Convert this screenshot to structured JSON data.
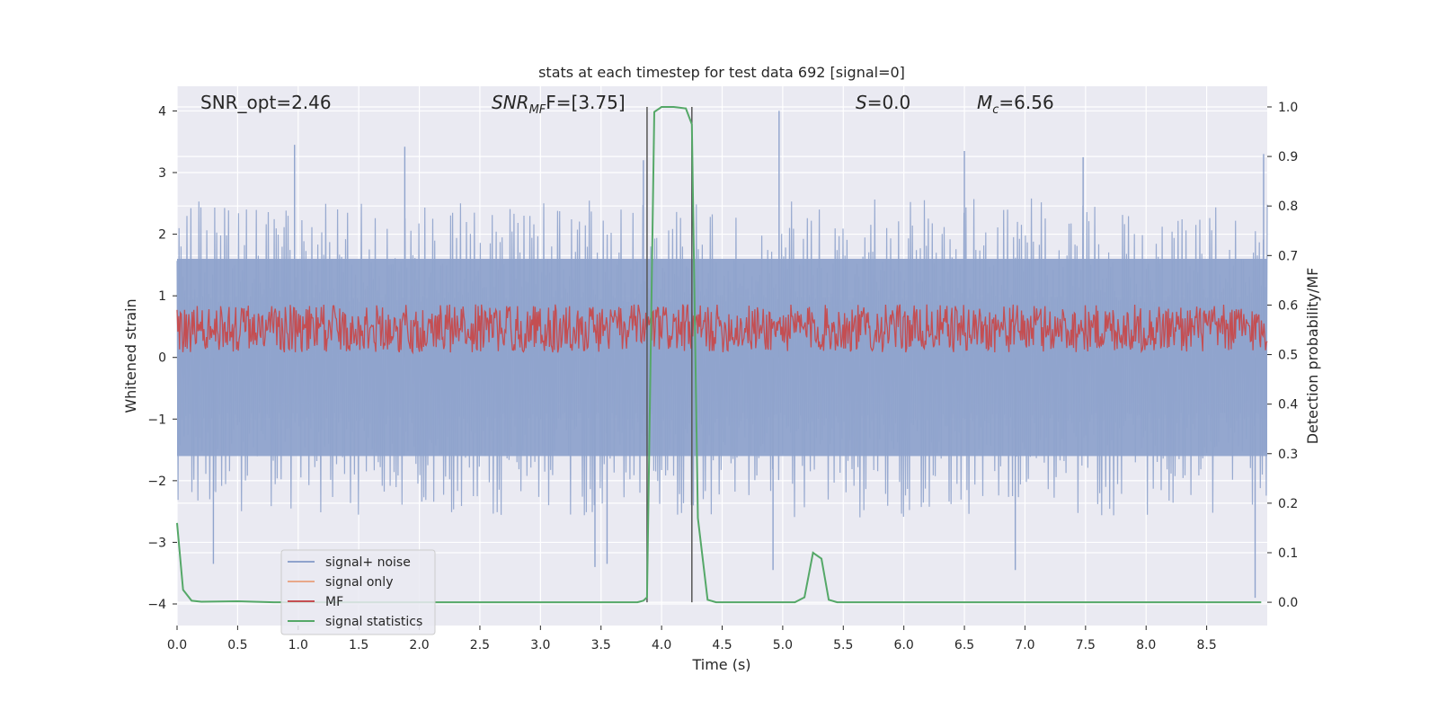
{
  "chart_data": {
    "type": "line",
    "title": "stats at each timestep for test data 692 [signal=0]",
    "xlabel": "Time (s)",
    "ylabel_left": "Whitened strain",
    "ylabel_right": "Detection probability/MF",
    "xlim": [
      0.0,
      9.0
    ],
    "ylim_left": [
      -4.35,
      4.4
    ],
    "ylim_right": [
      -0.047,
      1.0417
    ],
    "x_ticks": [
      "0.0",
      "0.5",
      "1.0",
      "1.5",
      "2.0",
      "2.5",
      "3.0",
      "3.5",
      "4.0",
      "4.5",
      "5.0",
      "5.5",
      "6.0",
      "6.5",
      "7.0",
      "7.5",
      "8.0",
      "8.5"
    ],
    "x_tick_values": [
      0.0,
      0.5,
      1.0,
      1.5,
      2.0,
      2.5,
      3.0,
      3.5,
      4.0,
      4.5,
      5.0,
      5.5,
      6.0,
      6.5,
      7.0,
      7.5,
      8.0,
      8.5
    ],
    "y_left_ticks": [
      "−4",
      "−3",
      "−2",
      "−1",
      "0",
      "1",
      "2",
      "3",
      "4"
    ],
    "y_left_tick_values": [
      -4,
      -3,
      -2,
      -1,
      0,
      1,
      2,
      3,
      4
    ],
    "y_right_ticks": [
      "0.0",
      "0.1",
      "0.2",
      "0.3",
      "0.4",
      "0.5",
      "0.6",
      "0.7",
      "0.8",
      "0.9",
      "1.0"
    ],
    "y_right_tick_values": [
      0.0,
      0.1,
      0.2,
      0.3,
      0.4,
      0.5,
      0.6,
      0.7,
      0.8,
      0.9,
      1.0
    ],
    "grid": true,
    "legend_position": "lower-left",
    "legend": [
      {
        "label": "signal+ noise",
        "color": "#8fa3cc"
      },
      {
        "label": "signal only",
        "color": "#e8a88a"
      },
      {
        "label": "MF",
        "color": "#c44e52"
      },
      {
        "label": "signal statistics",
        "color": "#55a868"
      }
    ],
    "annotations": {
      "snr_opt": "SNR_opt=2.46",
      "snr_mf_main": "SNR",
      "snr_mf_sub": "MF",
      "snr_mf_rest": "F=[3.75]",
      "s_var": "S",
      "s_rest": "=0.0",
      "mc_main": "M",
      "mc_sub": "c",
      "mc_rest": "=6.56"
    },
    "markers_x": [
      3.88,
      4.25
    ],
    "series": [
      {
        "name": "signal+ noise",
        "axis": "left",
        "color": "#8fa3cc",
        "description": "whitened strain noise band, roughly within [-2.4, 2.4] with spikes up to 4.0 and down to -3.9",
        "band": [
          -1.6,
          1.6
        ],
        "spikes": [
          [
            0.97,
            3.45
          ],
          [
            1.88,
            3.42
          ],
          [
            3.85,
            3.2
          ],
          [
            4.97,
            4.0
          ],
          [
            6.5,
            3.35
          ],
          [
            7.48,
            3.25
          ],
          [
            8.97,
            3.3
          ],
          [
            0.3,
            -3.35
          ],
          [
            3.45,
            -3.4
          ],
          [
            3.55,
            -3.35
          ],
          [
            4.92,
            -3.45
          ],
          [
            6.92,
            -3.45
          ],
          [
            8.9,
            -3.9
          ]
        ]
      },
      {
        "name": "MF",
        "axis": "left",
        "color": "#c44e52",
        "description": "matched-filter output oscillating between ~0 and ~0.9",
        "band": [
          0.0,
          0.9
        ]
      },
      {
        "name": "signal statistics",
        "axis": "right",
        "color": "#55a868",
        "x": [
          0.0,
          0.05,
          0.12,
          0.2,
          0.5,
          0.8,
          3.5,
          3.8,
          3.85,
          3.88,
          3.94,
          4.0,
          4.1,
          4.2,
          4.25,
          4.3,
          4.38,
          4.45,
          4.6,
          5.1,
          5.18,
          5.25,
          5.32,
          5.38,
          5.45,
          6.0,
          8.95
        ],
        "y": [
          0.16,
          0.025,
          0.003,
          0.001,
          0.002,
          0.0,
          0.0,
          0.0,
          0.003,
          0.01,
          0.99,
          1.0,
          1.0,
          0.997,
          0.965,
          0.17,
          0.005,
          0.0,
          0.0,
          0.0,
          0.01,
          0.1,
          0.088,
          0.005,
          0.0,
          0.0,
          0.0
        ]
      }
    ]
  }
}
